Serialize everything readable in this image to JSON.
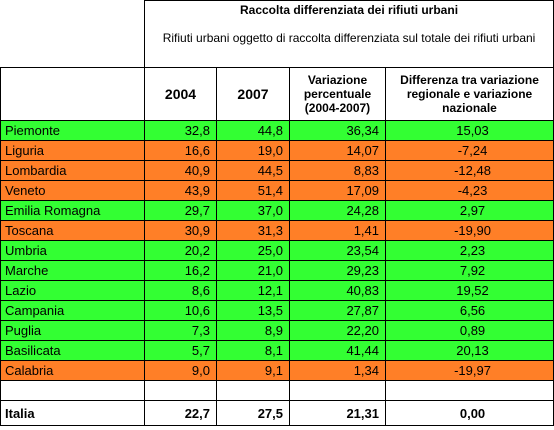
{
  "colors": {
    "above_national": "#33ff33",
    "below_national": "#ff7f27"
  },
  "header": {
    "title": "Raccolta differenziata dei rifiuti urbani",
    "subtitle": "Rifiuti urbani oggetto di raccolta differenziata sul totale dei rifiuti urbani",
    "columns": [
      "2004",
      "2007",
      "Variazione percentuale (2004-2007)",
      "Differenza tra variazione regionale e variazione nazionale"
    ]
  },
  "chart_data": {
    "type": "table",
    "title": "Raccolta differenziata dei rifiuti urbani",
    "subtitle": "Rifiuti urbani oggetto di raccolta differenziata sul totale dei rifiuti urbani",
    "columns": [
      "2004",
      "2007",
      "Variazione percentuale (2004-2007)",
      "Differenza tra variazione regionale e variazione nazionale"
    ],
    "rows": [
      {
        "region": "Piemonte",
        "y2004": "32,8",
        "y2007": "44,8",
        "variazione": "36,34",
        "differenza": "15,03",
        "status": "above"
      },
      {
        "region": "Liguria",
        "y2004": "16,6",
        "y2007": "19,0",
        "variazione": "14,07",
        "differenza": "-7,24",
        "status": "below"
      },
      {
        "region": "Lombardia",
        "y2004": "40,9",
        "y2007": "44,5",
        "variazione": "8,83",
        "differenza": "-12,48",
        "status": "below"
      },
      {
        "region": "Veneto",
        "y2004": "43,9",
        "y2007": "51,4",
        "variazione": "17,09",
        "differenza": "-4,23",
        "status": "below"
      },
      {
        "region": "Emilia Romagna",
        "y2004": "29,7",
        "y2007": "37,0",
        "variazione": "24,28",
        "differenza": "2,97",
        "status": "above"
      },
      {
        "region": "Toscana",
        "y2004": "30,9",
        "y2007": "31,3",
        "variazione": "1,41",
        "differenza": "-19,90",
        "status": "below"
      },
      {
        "region": "Umbria",
        "y2004": "20,2",
        "y2007": "25,0",
        "variazione": "23,54",
        "differenza": "2,23",
        "status": "above"
      },
      {
        "region": "Marche",
        "y2004": "16,2",
        "y2007": "21,0",
        "variazione": "29,23",
        "differenza": "7,92",
        "status": "above"
      },
      {
        "region": "Lazio",
        "y2004": "8,6",
        "y2007": "12,1",
        "variazione": "40,83",
        "differenza": "19,52",
        "status": "above"
      },
      {
        "region": "Campania",
        "y2004": "10,6",
        "y2007": "13,5",
        "variazione": "27,87",
        "differenza": "6,56",
        "status": "above"
      },
      {
        "region": "Puglia",
        "y2004": "7,3",
        "y2007": "8,9",
        "variazione": "22,20",
        "differenza": "0,89",
        "status": "above"
      },
      {
        "region": "Basilicata",
        "y2004": "5,7",
        "y2007": "8,1",
        "variazione": "41,44",
        "differenza": "20,13",
        "status": "above"
      },
      {
        "region": "Calabria",
        "y2004": "9,0",
        "y2007": "9,1",
        "variazione": "1,34",
        "differenza": "-19,97",
        "status": "below"
      }
    ],
    "total": {
      "region": "Italia",
      "y2004": "22,7",
      "y2007": "27,5",
      "variazione": "21,31",
      "differenza": "0,00"
    }
  }
}
